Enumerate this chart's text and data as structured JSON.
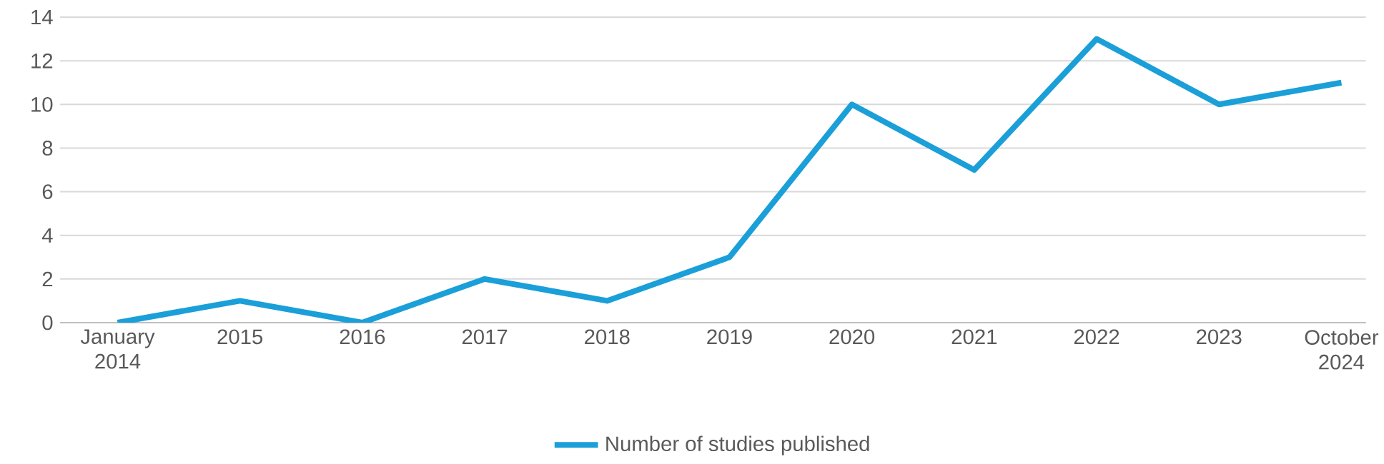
{
  "chart_data": {
    "type": "line",
    "categories": [
      "January 2014",
      "2015",
      "2016",
      "2017",
      "2018",
      "2019",
      "2020",
      "2021",
      "2022",
      "2023",
      "October 2024"
    ],
    "series": [
      {
        "name": "Number of studies published",
        "color": "#1a9fd9",
        "values": [
          0,
          1,
          0,
          2,
          1,
          3,
          10,
          7,
          13,
          10,
          11
        ]
      }
    ],
    "ylim": [
      0,
      14
    ],
    "yticks": [
      0,
      2,
      4,
      6,
      8,
      10,
      12,
      14
    ],
    "grid": "y",
    "legend": "bottom",
    "marker": "none",
    "line_style": "solid"
  }
}
